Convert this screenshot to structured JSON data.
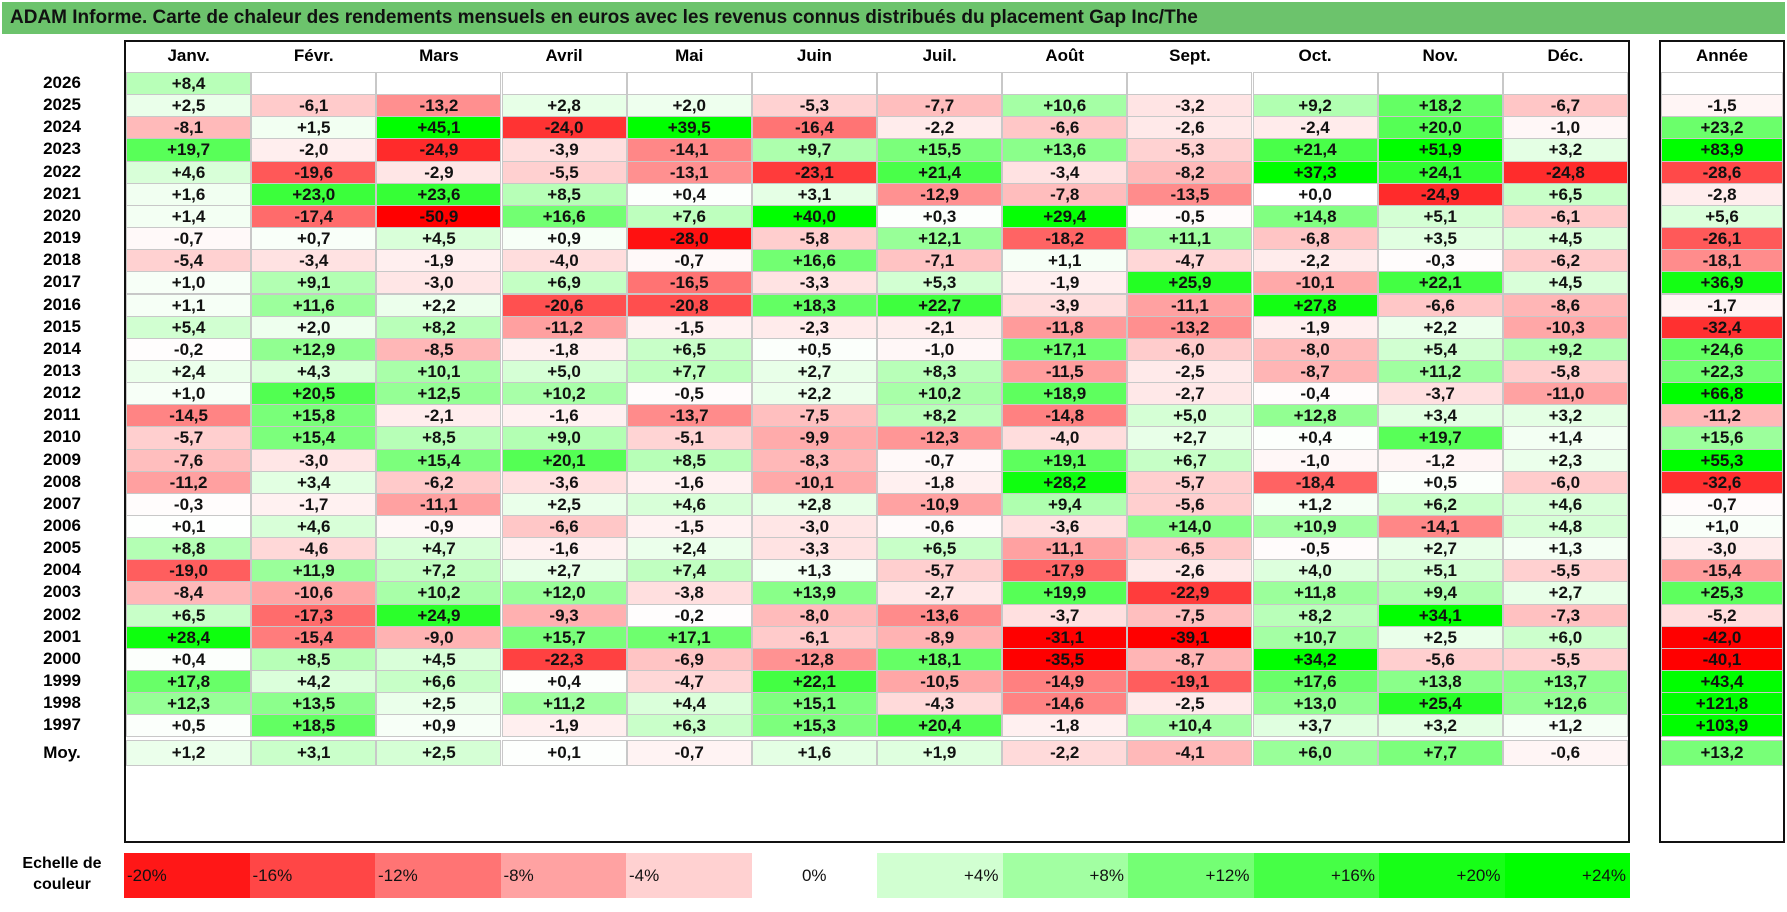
{
  "title": "ADAM Informe. Carte de chaleur des rendements mensuels en euros avec les revenus connus distribués du placement Gap Inc/The",
  "colors": {
    "negative": "#ff0000",
    "positive": "#00ff00",
    "neutral": "#ffffff"
  },
  "chart_data": {
    "type": "heatmap",
    "title": "ADAM Informe. Carte de chaleur des rendements mensuels en euros avec les revenus connus distribués du placement Gap Inc/The",
    "months": [
      "Janv.",
      "Févr.",
      "Mars",
      "Avril",
      "Mai",
      "Juin",
      "Juil.",
      "Août",
      "Sept.",
      "Oct.",
      "Nov.",
      "Déc."
    ],
    "year_header": "Année",
    "avg_label": "Moy.",
    "rows": [
      {
        "year": "2026",
        "values": [
          "+8,4",
          "",
          "",
          "",
          "",
          "",
          "",
          "",
          "",
          "",
          "",
          ""
        ],
        "annual": ""
      },
      {
        "year": "2025",
        "values": [
          "+2,5",
          "-6,1",
          "-13,2",
          "+2,8",
          "+2,0",
          "-5,3",
          "-7,7",
          "+10,6",
          "-3,2",
          "+9,2",
          "+18,2",
          "-6,7"
        ],
        "annual": "-1,5"
      },
      {
        "year": "2024",
        "values": [
          "-8,1",
          "+1,5",
          "+45,1",
          "-24,0",
          "+39,5",
          "-16,4",
          "-2,2",
          "-6,6",
          "-2,6",
          "-2,4",
          "+20,0",
          "-1,0"
        ],
        "annual": "+23,2"
      },
      {
        "year": "2023",
        "values": [
          "+19,7",
          "-2,0",
          "-24,9",
          "-3,9",
          "-14,1",
          "+9,7",
          "+15,5",
          "+13,6",
          "-5,3",
          "+21,4",
          "+51,9",
          "+3,2"
        ],
        "annual": "+83,9"
      },
      {
        "year": "2022",
        "values": [
          "+4,6",
          "-19,6",
          "-2,9",
          "-5,5",
          "-13,1",
          "-23,1",
          "+21,4",
          "-3,4",
          "-8,2",
          "+37,3",
          "+24,1",
          "-24,8"
        ],
        "annual": "-28,6"
      },
      {
        "year": "2021",
        "values": [
          "+1,6",
          "+23,0",
          "+23,6",
          "+8,5",
          "+0,4",
          "+3,1",
          "-12,9",
          "-7,8",
          "-13,5",
          "+0,0",
          "-24,9",
          "+6,5"
        ],
        "annual": "-2,8"
      },
      {
        "year": "2020",
        "values": [
          "+1,4",
          "-17,4",
          "-50,9",
          "+16,6",
          "+7,6",
          "+40,0",
          "+0,3",
          "+29,4",
          "-0,5",
          "+14,8",
          "+5,1",
          "-6,1"
        ],
        "annual": "+5,6"
      },
      {
        "year": "2019",
        "values": [
          "-0,7",
          "+0,7",
          "+4,5",
          "+0,9",
          "-28,0",
          "-5,8",
          "+12,1",
          "-18,2",
          "+11,1",
          "-6,8",
          "+3,5",
          "+4,5"
        ],
        "annual": "-26,1"
      },
      {
        "year": "2018",
        "values": [
          "-5,4",
          "-3,4",
          "-1,9",
          "-4,0",
          "-0,7",
          "+16,6",
          "-7,1",
          "+1,1",
          "-4,7",
          "-2,2",
          "-0,3",
          "-6,2"
        ],
        "annual": "-18,1"
      },
      {
        "year": "2017",
        "values": [
          "+1,0",
          "+9,1",
          "-3,0",
          "+6,9",
          "-16,5",
          "-3,3",
          "+5,3",
          "-1,9",
          "+25,9",
          "-10,1",
          "+22,1",
          "+4,5"
        ],
        "annual": "+36,9"
      },
      {
        "year": "2016",
        "values": [
          "+1,1",
          "+11,6",
          "+2,2",
          "-20,6",
          "-20,8",
          "+18,3",
          "+22,7",
          "-3,9",
          "-11,1",
          "+27,8",
          "-6,6",
          "-8,6"
        ],
        "annual": "-1,7"
      },
      {
        "year": "2015",
        "values": [
          "+5,4",
          "+2,0",
          "+8,2",
          "-11,2",
          "-1,5",
          "-2,3",
          "-2,1",
          "-11,8",
          "-13,2",
          "-1,9",
          "+2,2",
          "-10,3"
        ],
        "annual": "-32,4"
      },
      {
        "year": "2014",
        "values": [
          "-0,2",
          "+12,9",
          "-8,5",
          "-1,8",
          "+6,5",
          "+0,5",
          "-1,0",
          "+17,1",
          "-6,0",
          "-8,0",
          "+5,4",
          "+9,2"
        ],
        "annual": "+24,6"
      },
      {
        "year": "2013",
        "values": [
          "+2,4",
          "+4,3",
          "+10,1",
          "+5,0",
          "+7,7",
          "+2,7",
          "+8,3",
          "-11,5",
          "-2,5",
          "-8,7",
          "+11,2",
          "-5,8"
        ],
        "annual": "+22,3"
      },
      {
        "year": "2012",
        "values": [
          "+1,0",
          "+20,5",
          "+12,5",
          "+10,2",
          "-0,5",
          "+2,2",
          "+10,2",
          "+18,9",
          "-2,7",
          "-0,4",
          "-3,7",
          "-11,0"
        ],
        "annual": "+66,8"
      },
      {
        "year": "2011",
        "values": [
          "-14,5",
          "+15,8",
          "-2,1",
          "-1,6",
          "-13,7",
          "-7,5",
          "+8,2",
          "-14,8",
          "+5,0",
          "+12,8",
          "+3,4",
          "+3,2"
        ],
        "annual": "-11,2"
      },
      {
        "year": "2010",
        "values": [
          "-5,7",
          "+15,4",
          "+8,5",
          "+9,0",
          "-5,1",
          "-9,9",
          "-12,3",
          "-4,0",
          "+2,7",
          "+0,4",
          "+19,7",
          "+1,4"
        ],
        "annual": "+15,6"
      },
      {
        "year": "2009",
        "values": [
          "-7,6",
          "-3,0",
          "+15,4",
          "+20,1",
          "+8,5",
          "-8,3",
          "-0,7",
          "+19,1",
          "+6,7",
          "-1,0",
          "-1,2",
          "+2,3"
        ],
        "annual": "+55,3"
      },
      {
        "year": "2008",
        "values": [
          "-11,2",
          "+3,4",
          "-6,2",
          "-3,6",
          "-1,6",
          "-10,1",
          "-1,8",
          "+28,2",
          "-5,7",
          "-18,4",
          "+0,5",
          "-6,0"
        ],
        "annual": "-32,6"
      },
      {
        "year": "2007",
        "values": [
          "-0,3",
          "-1,7",
          "-11,1",
          "+2,5",
          "+4,6",
          "+2,8",
          "-10,9",
          "+9,4",
          "-5,6",
          "+1,2",
          "+6,2",
          "+4,6"
        ],
        "annual": "-0,7"
      },
      {
        "year": "2006",
        "values": [
          "+0,1",
          "+4,6",
          "-0,9",
          "-6,6",
          "-1,5",
          "-3,0",
          "-0,6",
          "-3,6",
          "+14,0",
          "+10,9",
          "-14,1",
          "+4,8"
        ],
        "annual": "+1,0"
      },
      {
        "year": "2005",
        "values": [
          "+8,8",
          "-4,6",
          "+4,7",
          "-1,6",
          "+2,4",
          "-3,3",
          "+6,5",
          "-11,1",
          "-6,5",
          "-0,5",
          "+2,7",
          "+1,3"
        ],
        "annual": "-3,0"
      },
      {
        "year": "2004",
        "values": [
          "-19,0",
          "+11,9",
          "+7,2",
          "+2,7",
          "+7,4",
          "+1,3",
          "-5,7",
          "-17,9",
          "-2,6",
          "+4,0",
          "+5,1",
          "-5,5"
        ],
        "annual": "-15,4"
      },
      {
        "year": "2003",
        "values": [
          "-8,4",
          "-10,6",
          "+10,2",
          "+12,0",
          "-3,8",
          "+13,9",
          "-2,7",
          "+19,9",
          "-22,9",
          "+11,8",
          "+9,4",
          "+2,7"
        ],
        "annual": "+25,3"
      },
      {
        "year": "2002",
        "values": [
          "+6,5",
          "-17,3",
          "+24,9",
          "-9,3",
          "-0,2",
          "-8,0",
          "-13,6",
          "-3,7",
          "-7,5",
          "+8,2",
          "+34,1",
          "-7,3"
        ],
        "annual": "-5,2"
      },
      {
        "year": "2001",
        "values": [
          "+28,4",
          "-15,4",
          "-9,0",
          "+15,7",
          "+17,1",
          "-6,1",
          "-8,9",
          "-31,1",
          "-39,1",
          "+10,7",
          "+2,5",
          "+6,0"
        ],
        "annual": "-42,0"
      },
      {
        "year": "2000",
        "values": [
          "+0,4",
          "+8,5",
          "+4,5",
          "-22,3",
          "-6,9",
          "-12,8",
          "+18,1",
          "-35,5",
          "-8,7",
          "+34,2",
          "-5,6",
          "-5,5"
        ],
        "annual": "-40,1"
      },
      {
        "year": "1999",
        "values": [
          "+17,8",
          "+4,2",
          "+6,6",
          "+0,4",
          "-4,7",
          "+22,1",
          "-10,5",
          "-14,9",
          "-19,1",
          "+17,6",
          "+13,8",
          "+13,7"
        ],
        "annual": "+43,4"
      },
      {
        "year": "1998",
        "values": [
          "+12,3",
          "+13,5",
          "+2,5",
          "+11,2",
          "+4,4",
          "+15,1",
          "-4,3",
          "-14,6",
          "-2,5",
          "+13,0",
          "+25,4",
          "+12,6"
        ],
        "annual": "+121,8"
      },
      {
        "year": "1997",
        "values": [
          "+0,5",
          "+18,5",
          "+0,9",
          "-1,9",
          "+6,3",
          "+15,3",
          "+20,4",
          "-1,8",
          "+10,4",
          "+3,7",
          "+3,2",
          "+1,2"
        ],
        "annual": "+103,9"
      }
    ],
    "average": {
      "values": [
        "+1,2",
        "+3,1",
        "+2,5",
        "+0,1",
        "-0,7",
        "+1,6",
        "+1,9",
        "-2,2",
        "-4,1",
        "+6,0",
        "+7,7",
        "-0,6"
      ],
      "annual": "+13,2"
    },
    "scale": {
      "label": "Echelle de couleur",
      "stops": [
        {
          "label": "-20%",
          "value": -20
        },
        {
          "label": "-16%",
          "value": -16
        },
        {
          "label": "-12%",
          "value": -12
        },
        {
          "label": "-8%",
          "value": -8
        },
        {
          "label": "-4%",
          "value": -4
        },
        {
          "label": "0%",
          "value": 0
        },
        {
          "label": "+4%",
          "value": 4
        },
        {
          "label": "+8%",
          "value": 8
        },
        {
          "label": "+12%",
          "value": 12
        },
        {
          "label": "+16%",
          "value": 16
        },
        {
          "label": "+20%",
          "value": 20
        },
        {
          "label": "+24%",
          "value": 24
        }
      ]
    }
  }
}
